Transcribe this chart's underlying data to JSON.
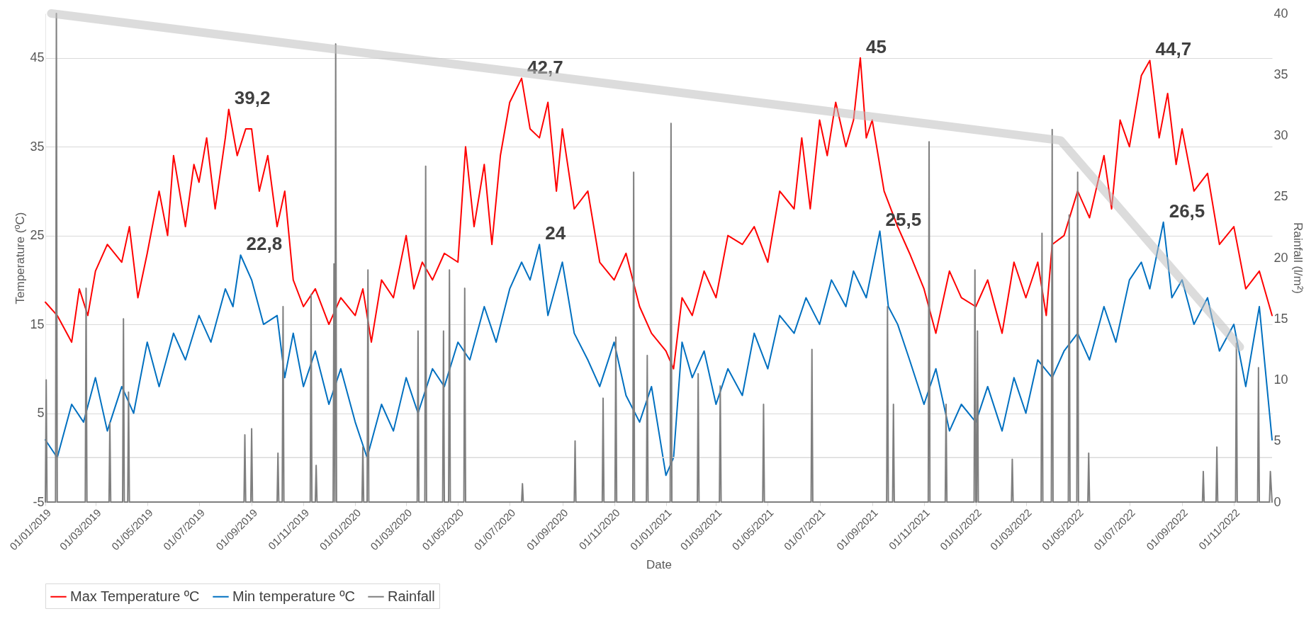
{
  "chart_data": {
    "type": "line",
    "xlabel": "Date",
    "ylabel": "Temperature (ºC)",
    "y2label": "Rainfall (l/m²)",
    "xlim": [
      "2019-01-01",
      "2022-12-16"
    ],
    "xticks": [
      {
        "value": "2019-01-01",
        "label": "01/01/2019"
      },
      {
        "value": "2019-03-01",
        "label": "01/03/2019"
      },
      {
        "value": "2019-05-01",
        "label": "01/05/2019"
      },
      {
        "value": "2019-07-01",
        "label": "01/07/2019"
      },
      {
        "value": "2019-09-01",
        "label": "01/09/2019"
      },
      {
        "value": "2019-11-01",
        "label": "01/11/2019"
      },
      {
        "value": "2020-01-01",
        "label": "01/01/2020"
      },
      {
        "value": "2020-03-01",
        "label": "01/03/2020"
      },
      {
        "value": "2020-05-01",
        "label": "01/05/2020"
      },
      {
        "value": "2020-07-01",
        "label": "01/07/2020"
      },
      {
        "value": "2020-09-01",
        "label": "01/09/2020"
      },
      {
        "value": "2020-11-01",
        "label": "01/11/2020"
      },
      {
        "value": "2021-01-01",
        "label": "01/01/2021"
      },
      {
        "value": "2021-03-01",
        "label": "01/03/2021"
      },
      {
        "value": "2021-05-01",
        "label": "01/05/2021"
      },
      {
        "value": "2021-07-01",
        "label": "01/07/2021"
      },
      {
        "value": "2021-09-01",
        "label": "01/09/2021"
      },
      {
        "value": "2021-11-01",
        "label": "01/11/2021"
      },
      {
        "value": "2022-01-01",
        "label": "01/01/2022"
      },
      {
        "value": "2022-03-01",
        "label": "01/03/2022"
      },
      {
        "value": "2022-05-01",
        "label": "01/05/2022"
      },
      {
        "value": "2022-07-01",
        "label": "01/07/2022"
      },
      {
        "value": "2022-09-01",
        "label": "01/09/2022"
      },
      {
        "value": "2022-11-01",
        "label": "01/11/2022"
      }
    ],
    "ylim": [
      -5,
      50
    ],
    "yticks": [
      -5,
      5,
      15,
      25,
      35,
      45
    ],
    "y2lim": [
      0,
      40
    ],
    "y2ticks": [
      0,
      5,
      10,
      15,
      20,
      25,
      30,
      35,
      40
    ],
    "grid": "y",
    "legend": "bottom left",
    "ref_lines": [
      {
        "axis": "y",
        "value": 0,
        "color": "#d9d9d9"
      }
    ],
    "series": [
      {
        "name": "Max Temperature ºC",
        "color": "#ff0000",
        "x": [
          "2019-01-01",
          "2019-01-15",
          "2019-02-01",
          "2019-02-10",
          "2019-02-20",
          "2019-03-01",
          "2019-03-15",
          "2019-04-01",
          "2019-04-10",
          "2019-04-20",
          "2019-05-01",
          "2019-05-15",
          "2019-05-25",
          "2019-06-01",
          "2019-06-15",
          "2019-06-25",
          "2019-07-01",
          "2019-07-10",
          "2019-07-20",
          "2019-08-01",
          "2019-08-05",
          "2019-08-15",
          "2019-08-25",
          "2019-09-01",
          "2019-09-10",
          "2019-09-20",
          "2019-10-01",
          "2019-10-10",
          "2019-10-20",
          "2019-11-01",
          "2019-11-15",
          "2019-12-01",
          "2019-12-15",
          "2020-01-01",
          "2020-01-10",
          "2020-01-20",
          "2020-02-01",
          "2020-02-15",
          "2020-03-01",
          "2020-03-10",
          "2020-03-20",
          "2020-04-01",
          "2020-04-15",
          "2020-05-01",
          "2020-05-10",
          "2020-05-20",
          "2020-06-01",
          "2020-06-10",
          "2020-06-20",
          "2020-07-01",
          "2020-07-15",
          "2020-07-25",
          "2020-08-05",
          "2020-08-15",
          "2020-08-25",
          "2020-09-01",
          "2020-09-15",
          "2020-10-01",
          "2020-10-15",
          "2020-11-01",
          "2020-11-15",
          "2020-12-01",
          "2020-12-15",
          "2021-01-01",
          "2021-01-10",
          "2021-01-20",
          "2021-02-01",
          "2021-02-15",
          "2021-03-01",
          "2021-03-15",
          "2021-04-01",
          "2021-04-15",
          "2021-05-01",
          "2021-05-15",
          "2021-06-01",
          "2021-06-10",
          "2021-06-20",
          "2021-07-01",
          "2021-07-10",
          "2021-07-20",
          "2021-08-01",
          "2021-08-10",
          "2021-08-18",
          "2021-08-25",
          "2021-09-01",
          "2021-09-15",
          "2021-10-01",
          "2021-10-15",
          "2021-11-01",
          "2021-11-15",
          "2021-12-01",
          "2021-12-15",
          "2022-01-01",
          "2022-01-15",
          "2022-02-01",
          "2022-02-15",
          "2022-03-01",
          "2022-03-15",
          "2022-03-25",
          "2022-04-01",
          "2022-04-15",
          "2022-05-01",
          "2022-05-15",
          "2022-06-01",
          "2022-06-10",
          "2022-06-20",
          "2022-07-01",
          "2022-07-15",
          "2022-07-25",
          "2022-08-05",
          "2022-08-15",
          "2022-08-25",
          "2022-09-01",
          "2022-09-15",
          "2022-10-01",
          "2022-10-15",
          "2022-11-01",
          "2022-11-15",
          "2022-12-01",
          "2022-12-16"
        ],
        "values": [
          17.5,
          16,
          13,
          19,
          16,
          21,
          24,
          22,
          26,
          18,
          23,
          30,
          25,
          34,
          26,
          33,
          31,
          36,
          28,
          36,
          39.2,
          34,
          37,
          37,
          30,
          34,
          26,
          30,
          20,
          17,
          19,
          15,
          18,
          16,
          19,
          13,
          20,
          18,
          25,
          19,
          22,
          20,
          23,
          22,
          35,
          26,
          33,
          24,
          34,
          40,
          42.7,
          37,
          36,
          40,
          30,
          37,
          28,
          30,
          22,
          20,
          23,
          17,
          14,
          12,
          10,
          18,
          16,
          21,
          18,
          25,
          24,
          26,
          22,
          30,
          28,
          36,
          28,
          38,
          34,
          40,
          35,
          38,
          45,
          36,
          38,
          30,
          26,
          23,
          19,
          14,
          21,
          18,
          17,
          20,
          14,
          22,
          18,
          22,
          16,
          24,
          25,
          30,
          27,
          34,
          28,
          38,
          35,
          43,
          44.7,
          36,
          41,
          33,
          37,
          30,
          32,
          24,
          26,
          19,
          21,
          16
        ]
      },
      {
        "name": "Min temperature ºC",
        "color": "#0070c0",
        "x": [
          "2019-01-01",
          "2019-01-15",
          "2019-02-01",
          "2019-02-15",
          "2019-03-01",
          "2019-03-15",
          "2019-04-01",
          "2019-04-15",
          "2019-05-01",
          "2019-05-15",
          "2019-06-01",
          "2019-06-15",
          "2019-07-01",
          "2019-07-15",
          "2019-08-01",
          "2019-08-10",
          "2019-08-19",
          "2019-09-01",
          "2019-09-15",
          "2019-10-01",
          "2019-10-10",
          "2019-10-20",
          "2019-11-01",
          "2019-11-15",
          "2019-12-01",
          "2019-12-15",
          "2020-01-01",
          "2020-01-15",
          "2020-02-01",
          "2020-02-15",
          "2020-03-01",
          "2020-03-15",
          "2020-04-01",
          "2020-04-15",
          "2020-05-01",
          "2020-05-15",
          "2020-06-01",
          "2020-06-15",
          "2020-07-01",
          "2020-07-15",
          "2020-07-25",
          "2020-08-05",
          "2020-08-15",
          "2020-09-01",
          "2020-09-15",
          "2020-10-01",
          "2020-10-15",
          "2020-11-01",
          "2020-11-15",
          "2020-12-01",
          "2020-12-15",
          "2021-01-01",
          "2021-01-10",
          "2021-01-20",
          "2021-02-01",
          "2021-02-15",
          "2021-03-01",
          "2021-03-15",
          "2021-04-01",
          "2021-04-15",
          "2021-05-01",
          "2021-05-15",
          "2021-06-01",
          "2021-06-15",
          "2021-07-01",
          "2021-07-15",
          "2021-08-01",
          "2021-08-10",
          "2021-08-25",
          "2021-09-10",
          "2021-09-20",
          "2021-10-01",
          "2021-10-15",
          "2021-11-01",
          "2021-11-15",
          "2021-12-01",
          "2021-12-15",
          "2022-01-01",
          "2022-01-15",
          "2022-02-01",
          "2022-02-15",
          "2022-03-01",
          "2022-03-15",
          "2022-04-01",
          "2022-04-15",
          "2022-05-01",
          "2022-05-15",
          "2022-06-01",
          "2022-06-15",
          "2022-07-01",
          "2022-07-15",
          "2022-07-25",
          "2022-08-10",
          "2022-08-20",
          "2022-09-01",
          "2022-09-15",
          "2022-10-01",
          "2022-10-15",
          "2022-11-01",
          "2022-11-15",
          "2022-12-01",
          "2022-12-16"
        ],
        "values": [
          2,
          0,
          6,
          4,
          9,
          3,
          8,
          5,
          13,
          8,
          14,
          11,
          16,
          13,
          19,
          17,
          22.8,
          20,
          15,
          16,
          9,
          14,
          8,
          12,
          6,
          10,
          4,
          0,
          6,
          3,
          9,
          5,
          10,
          8,
          13,
          11,
          17,
          13,
          19,
          22,
          20,
          24,
          16,
          22,
          14,
          11,
          8,
          13,
          7,
          4,
          8,
          -2,
          0,
          13,
          9,
          12,
          6,
          10,
          7,
          14,
          10,
          16,
          14,
          18,
          15,
          20,
          17,
          21,
          18,
          25.5,
          17,
          15,
          11,
          6,
          10,
          3,
          6,
          4,
          8,
          3,
          9,
          5,
          11,
          9,
          12,
          14,
          11,
          17,
          13,
          20,
          22,
          19,
          26.5,
          18,
          20,
          15,
          18,
          12,
          15,
          8,
          17,
          2
        ]
      },
      {
        "name": "Rainfall",
        "color": "#7f7f7f",
        "axis": "y2",
        "x": [
          "2019-01-01",
          "2019-01-02",
          "2019-01-03",
          "2019-01-13",
          "2019-01-14",
          "2019-01-15",
          "2019-02-17",
          "2019-02-18",
          "2019-02-19",
          "2019-03-17",
          "2019-03-18",
          "2019-03-19",
          "2019-04-02",
          "2019-04-03",
          "2019-04-04",
          "2019-04-08",
          "2019-04-09",
          "2019-04-10",
          "2019-08-23",
          "2019-08-24",
          "2019-08-25",
          "2019-08-31",
          "2019-09-01",
          "2019-09-02",
          "2019-10-01",
          "2019-10-02",
          "2019-10-03",
          "2019-10-07",
          "2019-10-08",
          "2019-10-09",
          "2019-11-09",
          "2019-11-10",
          "2019-11-11",
          "2019-11-15",
          "2019-11-16",
          "2019-11-17",
          "2019-12-06",
          "2019-12-07",
          "2019-12-08",
          "2019-12-09",
          "2019-12-10",
          "2020-01-09",
          "2020-01-10",
          "2020-01-11",
          "2020-01-15",
          "2020-01-16",
          "2020-01-17",
          "2020-03-14",
          "2020-03-15",
          "2020-03-16",
          "2020-03-23",
          "2020-03-24",
          "2020-03-25",
          "2020-04-13",
          "2020-04-14",
          "2020-04-15",
          "2020-04-20",
          "2020-04-21",
          "2020-04-22",
          "2020-05-08",
          "2020-05-09",
          "2020-05-10",
          "2020-07-15",
          "2020-07-16",
          "2020-07-17",
          "2020-09-15",
          "2020-09-16",
          "2020-09-17",
          "2020-10-18",
          "2020-10-19",
          "2020-10-20",
          "2020-11-02",
          "2020-11-03",
          "2020-11-04",
          "2020-11-23",
          "2020-11-24",
          "2020-11-25",
          "2020-12-09",
          "2020-12-10",
          "2020-12-11",
          "2021-01-06",
          "2021-01-07",
          "2021-01-08",
          "2021-02-07",
          "2021-02-08",
          "2021-02-09",
          "2021-03-05",
          "2021-03-06",
          "2021-03-07",
          "2021-04-25",
          "2021-04-26",
          "2021-04-27",
          "2021-06-21",
          "2021-06-22",
          "2021-06-23",
          "2021-09-18",
          "2021-09-19",
          "2021-09-20",
          "2021-09-25",
          "2021-09-26",
          "2021-09-27",
          "2021-11-06",
          "2021-11-07",
          "2021-11-08",
          "2021-11-26",
          "2021-11-27",
          "2021-11-28",
          "2021-12-30",
          "2021-12-31",
          "2022-01-01",
          "2022-01-02",
          "2022-01-03",
          "2022-01-04",
          "2022-02-12",
          "2022-02-13",
          "2022-02-14",
          "2022-03-19",
          "2022-03-20",
          "2022-03-21",
          "2022-03-31",
          "2022-04-01",
          "2022-04-02",
          "2022-04-20",
          "2022-04-21",
          "2022-04-22",
          "2022-04-30",
          "2022-05-01",
          "2022-05-02",
          "2022-05-13",
          "2022-05-14",
          "2022-05-15",
          "2022-09-25",
          "2022-09-26",
          "2022-09-27",
          "2022-10-11",
          "2022-10-12",
          "2022-10-13",
          "2022-11-03",
          "2022-11-04",
          "2022-11-05",
          "2022-11-29",
          "2022-11-30",
          "2022-12-01",
          "2022-12-13",
          "2022-12-14",
          "2022-12-16"
        ],
        "values": [
          0,
          10,
          0,
          0,
          40,
          0,
          0,
          17.5,
          0,
          0,
          6.5,
          0,
          0,
          15,
          0,
          0,
          9,
          0,
          0,
          5.5,
          0,
          0,
          6,
          0,
          0,
          4,
          0,
          0,
          16,
          0,
          0,
          17,
          0,
          0,
          3,
          0,
          0,
          19.5,
          0,
          37.5,
          0,
          0,
          4.5,
          0,
          0,
          19,
          0,
          0,
          14,
          0,
          0,
          27.5,
          0,
          0,
          14,
          0,
          0,
          19,
          0,
          0,
          17.5,
          0,
          0,
          1.5,
          0,
          0,
          5,
          0,
          0,
          8.5,
          0,
          0,
          13.5,
          0,
          0,
          27,
          0,
          0,
          12,
          0,
          0,
          31,
          0,
          0,
          10.5,
          0,
          0,
          9.5,
          0,
          0,
          8,
          0,
          0,
          12.5,
          0,
          0,
          16,
          0,
          0,
          8,
          0,
          0,
          29.5,
          0,
          0,
          8,
          0,
          0,
          19,
          0,
          0,
          14,
          0,
          0,
          3.5,
          0,
          0,
          22,
          0,
          0,
          30.5,
          0,
          0,
          23.5,
          0,
          0,
          27,
          0,
          0,
          4,
          0,
          0,
          2.5,
          0,
          0,
          4.5,
          0,
          0,
          13,
          0,
          0,
          11,
          0,
          0,
          2.5,
          0
        ]
      },
      {
        "type": "line",
        "color": "#bfbfbf",
        "axis": "y2",
        "x": [
          "2019-01-08",
          "2022-04-11",
          "2022-11-08"
        ],
        "values": [
          40,
          29.6,
          12.7
        ]
      }
    ],
    "annotations": [
      {
        "text": "39,2",
        "x": "2019-08-05",
        "y": 39.2
      },
      {
        "text": "22,8",
        "x": "2019-08-19",
        "y": 22.8
      },
      {
        "text": "42,7",
        "x": "2020-07-15",
        "y": 42.7
      },
      {
        "text": "24",
        "x": "2020-08-05",
        "y": 24
      },
      {
        "text": "45",
        "x": "2021-08-18",
        "y": 45
      },
      {
        "text": "25,5",
        "x": "2021-09-10",
        "y": 25.5
      },
      {
        "text": "44,7",
        "x": "2022-07-25",
        "y": 44.7
      },
      {
        "text": "26,5",
        "x": "2022-08-10",
        "y": 26.5
      }
    ]
  }
}
